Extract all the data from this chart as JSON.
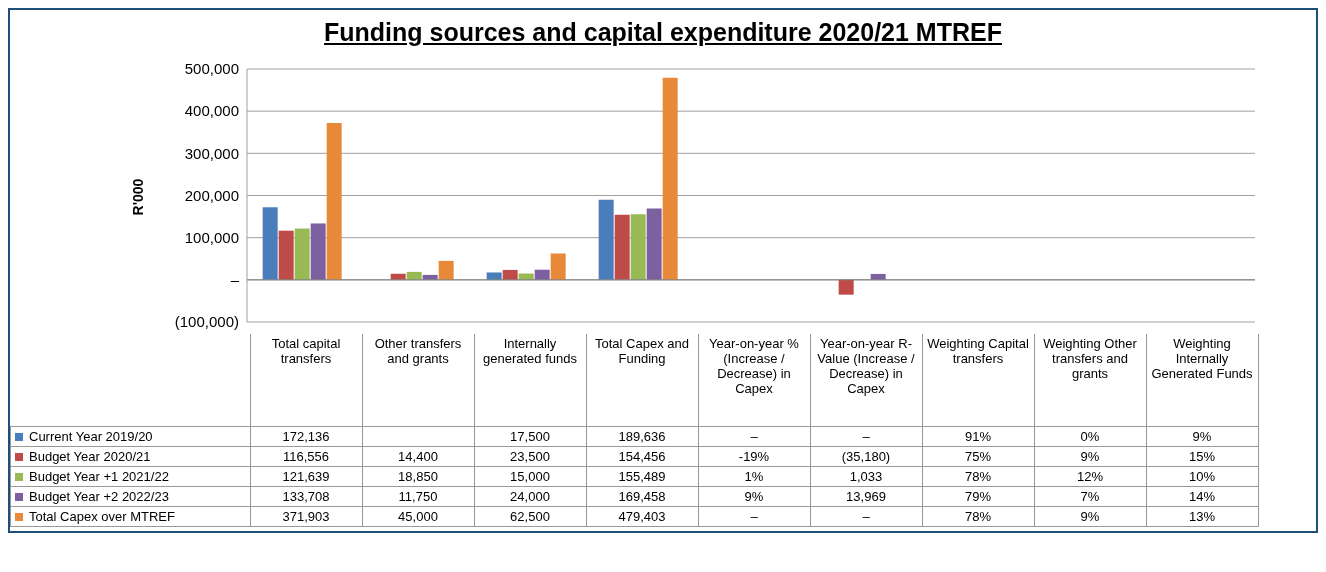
{
  "chart_data": {
    "type": "bar",
    "title": "Funding sources and capital expenditure 2020/21 MTREF",
    "ylabel": "R'000",
    "categories": [
      "Total capital transfers",
      "Other transfers and grants",
      "Internally generated funds",
      "Total Capex and Funding",
      "Year-on-year % (Increase / Decrease) in Capex",
      "Year-on-year R-Value (Increase / Decrease) in Capex",
      "Weighting Capital transfers",
      "Weighting Other transfers and grants",
      "Weighting Internally Generated Funds"
    ],
    "ylim": [
      -100000,
      500000
    ],
    "yticks": [
      {
        "value": -100000,
        "label": "(100,000)"
      },
      {
        "value": 0,
        "label": "–"
      },
      {
        "value": 100000,
        "label": "100,000"
      },
      {
        "value": 200000,
        "label": "200,000"
      },
      {
        "value": 300000,
        "label": "300,000"
      },
      {
        "value": 400000,
        "label": "400,000"
      },
      {
        "value": 500000,
        "label": "500,000"
      }
    ],
    "grid": "y",
    "legend": "bottom",
    "series": [
      {
        "name": "Current Year 2019/20",
        "color": "#4a7ebb",
        "values": [
          172136,
          null,
          17500,
          189636,
          0,
          0,
          0.91,
          0,
          0.09
        ],
        "value_labels": [
          "172,136",
          null,
          "17,500",
          "189,636",
          "–",
          "–",
          "91%",
          "0%",
          "9%"
        ]
      },
      {
        "name": "Budget Year 2020/21",
        "color": "#be4b48",
        "values": [
          116556,
          14400,
          23500,
          154456,
          -0.19,
          -35180,
          0.75,
          0.09,
          0.15
        ],
        "value_labels": [
          "116,556",
          "14,400",
          "23,500",
          "154,456",
          "-19%",
          "(35,180)",
          "75%",
          "9%",
          "15%"
        ]
      },
      {
        "name": "Budget Year +1 2021/22",
        "color": "#98b954",
        "values": [
          121639,
          18850,
          15000,
          155489,
          0.01,
          1033,
          0.78,
          0.12,
          0.1
        ],
        "value_labels": [
          "121,639",
          "18,850",
          "15,000",
          "155,489",
          "1%",
          "1,033",
          "78%",
          "12%",
          "10%"
        ]
      },
      {
        "name": "Budget Year +2 2022/23",
        "color": "#7d60a0",
        "values": [
          133708,
          11750,
          24000,
          169458,
          0.09,
          13969,
          0.79,
          0.07,
          0.14
        ],
        "value_labels": [
          "133,708",
          "11,750",
          "24,000",
          "169,458",
          "9%",
          "13,969",
          "79%",
          "7%",
          "14%"
        ]
      },
      {
        "name": "Total Capex over MTREF",
        "color": "#e8893a",
        "values": [
          371903,
          45000,
          62500,
          479403,
          0,
          0,
          0.78,
          0.09,
          0.13
        ],
        "value_labels": [
          "371,903",
          "45,000",
          "62,500",
          "479,403",
          "–",
          "–",
          "78%",
          "9%",
          "13%"
        ]
      }
    ]
  }
}
